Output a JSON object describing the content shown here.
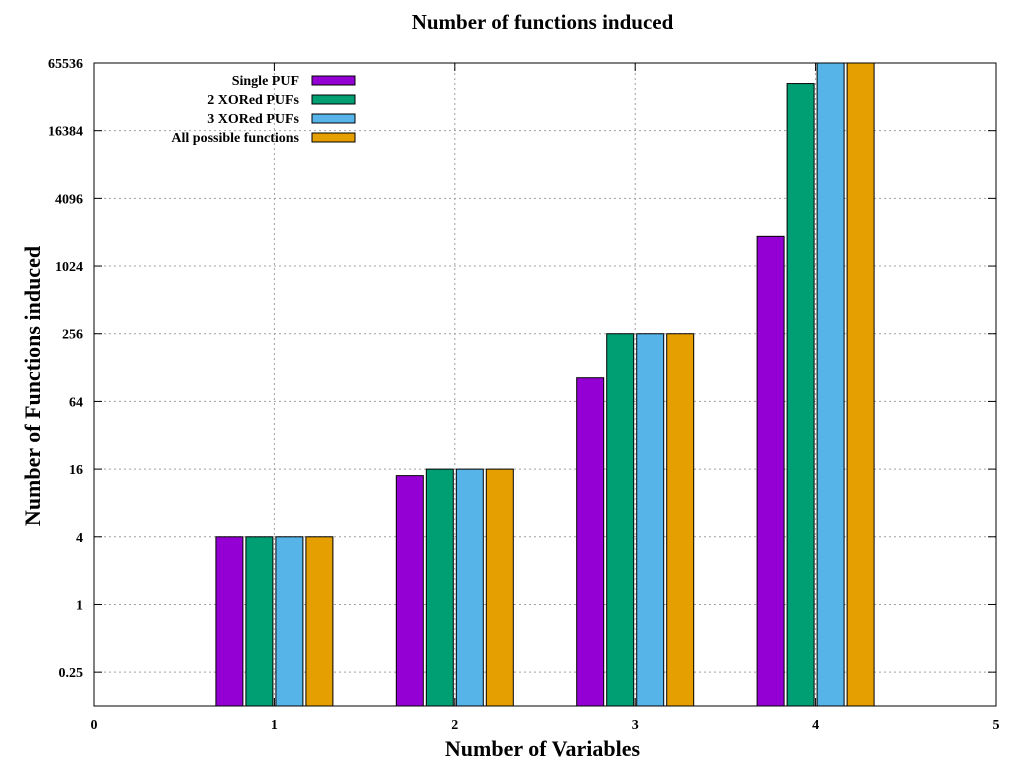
{
  "chart_data": {
    "type": "bar",
    "title": "Number of functions induced",
    "xlabel": "Number of Variables",
    "ylabel": "Number of Functions induced",
    "x": [
      1,
      2,
      3,
      4
    ],
    "xlim": [
      0,
      5
    ],
    "x_ticks": [
      "0",
      "1",
      "2",
      "3",
      "4",
      "5"
    ],
    "y_scale": "log2",
    "ylim": [
      0.125,
      65536
    ],
    "y_ticks": [
      0.25,
      1,
      4,
      16,
      64,
      256,
      1024,
      4096,
      16384,
      65536
    ],
    "y_tick_labels": [
      "0.25",
      "1",
      "4",
      "16",
      "64",
      "256",
      "1024",
      "4096",
      "16384",
      "65536"
    ],
    "grid": true,
    "legend_position": "top-left",
    "series": [
      {
        "name": "Single PUF",
        "color": "#9400d3",
        "values": [
          4,
          14,
          104,
          1882
        ]
      },
      {
        "name": "2 XORed PUFs",
        "color": "#009e73",
        "values": [
          4,
          16,
          256,
          43000
        ]
      },
      {
        "name": "3 XORed PUFs",
        "color": "#56b4e9",
        "values": [
          4,
          16,
          256,
          65536
        ]
      },
      {
        "name": "All possible functions",
        "color": "#e69f00",
        "values": [
          4,
          16,
          256,
          65536
        ]
      }
    ]
  }
}
